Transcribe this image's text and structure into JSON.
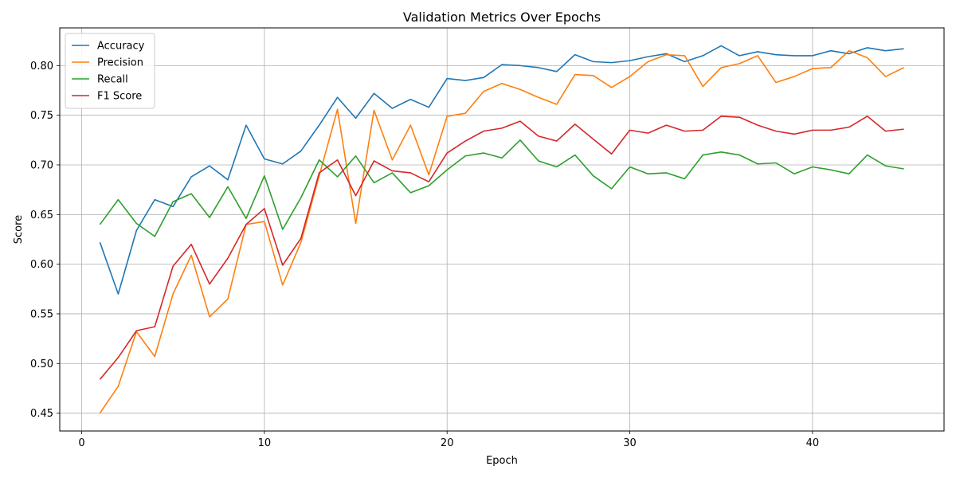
{
  "chart_data": {
    "type": "line",
    "title": "Validation Metrics Over Epochs",
    "xlabel": "Epoch",
    "ylabel": "Score",
    "xlim": [
      -1.2,
      47.2
    ],
    "ylim": [
      0.432,
      0.838
    ],
    "xticks": [
      0,
      10,
      20,
      30,
      40
    ],
    "yticks": [
      0.45,
      0.5,
      0.55,
      0.6,
      0.65,
      0.7,
      0.75,
      0.8
    ],
    "ytick_labels": [
      "0.45",
      "0.50",
      "0.55",
      "0.60",
      "0.65",
      "0.70",
      "0.75",
      "0.80"
    ],
    "grid": true,
    "legend_position": "top-left",
    "x": [
      1,
      2,
      3,
      4,
      5,
      6,
      7,
      8,
      9,
      10,
      11,
      12,
      13,
      14,
      15,
      16,
      17,
      18,
      19,
      20,
      21,
      22,
      23,
      24,
      25,
      26,
      27,
      28,
      29,
      30,
      31,
      32,
      33,
      34,
      35,
      36,
      37,
      38,
      39,
      40,
      41,
      42,
      43,
      44,
      45
    ],
    "series": [
      {
        "name": "Accuracy",
        "color": "#1f77b4",
        "values": [
          0.622,
          0.57,
          0.634,
          0.665,
          0.658,
          0.688,
          0.699,
          0.685,
          0.74,
          0.706,
          0.701,
          0.714,
          0.74,
          0.768,
          0.747,
          0.772,
          0.757,
          0.766,
          0.758,
          0.787,
          0.785,
          0.788,
          0.801,
          0.8,
          0.798,
          0.794,
          0.811,
          0.804,
          0.803,
          0.805,
          0.809,
          0.812,
          0.804,
          0.81,
          0.82,
          0.81,
          0.814,
          0.811,
          0.81,
          0.81,
          0.815,
          0.812,
          0.818,
          0.815,
          0.817
        ]
      },
      {
        "name": "Precision",
        "color": "#ff7f0e",
        "values": [
          0.45,
          0.477,
          0.532,
          0.507,
          0.57,
          0.609,
          0.547,
          0.565,
          0.64,
          0.643,
          0.579,
          0.622,
          0.689,
          0.756,
          0.641,
          0.755,
          0.705,
          0.74,
          0.69,
          0.749,
          0.752,
          0.774,
          0.782,
          0.776,
          0.768,
          0.761,
          0.791,
          0.79,
          0.778,
          0.789,
          0.804,
          0.811,
          0.81,
          0.779,
          0.798,
          0.802,
          0.81,
          0.783,
          0.789,
          0.797,
          0.798,
          0.815,
          0.808,
          0.789,
          0.798
        ]
      },
      {
        "name": "Recall",
        "color": "#2ca02c",
        "values": [
          0.64,
          0.665,
          0.641,
          0.628,
          0.663,
          0.671,
          0.647,
          0.678,
          0.646,
          0.689,
          0.635,
          0.667,
          0.705,
          0.688,
          0.709,
          0.682,
          0.692,
          0.672,
          0.679,
          0.695,
          0.709,
          0.712,
          0.707,
          0.725,
          0.704,
          0.698,
          0.71,
          0.689,
          0.676,
          0.698,
          0.691,
          0.692,
          0.686,
          0.71,
          0.713,
          0.71,
          0.701,
          0.702,
          0.691,
          0.698,
          0.695,
          0.691,
          0.71,
          0.699,
          0.696
        ]
      },
      {
        "name": "F1 Score",
        "color": "#d62728",
        "values": [
          0.484,
          0.506,
          0.533,
          0.537,
          0.598,
          0.62,
          0.58,
          0.606,
          0.64,
          0.656,
          0.599,
          0.626,
          0.692,
          0.705,
          0.669,
          0.704,
          0.694,
          0.692,
          0.683,
          0.712,
          0.724,
          0.734,
          0.737,
          0.744,
          0.729,
          0.724,
          0.741,
          0.726,
          0.711,
          0.735,
          0.732,
          0.74,
          0.734,
          0.735,
          0.749,
          0.748,
          0.74,
          0.734,
          0.731,
          0.735,
          0.735,
          0.738,
          0.749,
          0.734,
          0.736
        ]
      }
    ]
  }
}
